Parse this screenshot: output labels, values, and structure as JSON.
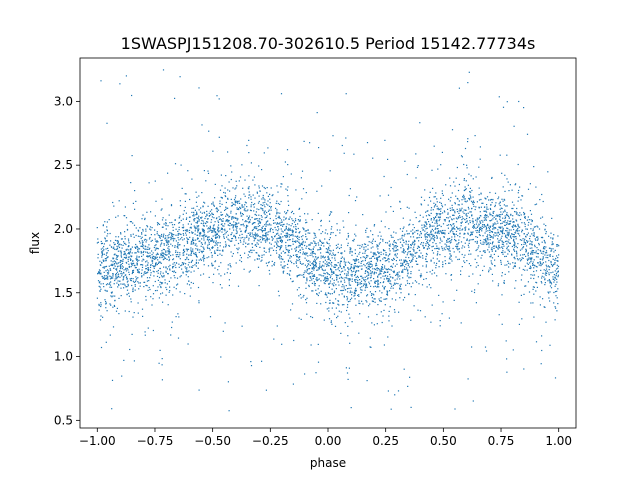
{
  "chart_data": {
    "type": "scatter",
    "title": "1SWASPJ151208.70-302610.5 Period 15142.77734s",
    "xlabel": "phase",
    "ylabel": "flux",
    "xlim": [
      -1.075,
      1.075
    ],
    "ylim": [
      0.44,
      3.34
    ],
    "xticks": [
      -1.0,
      -0.75,
      -0.5,
      -0.25,
      0.0,
      0.25,
      0.5,
      0.75,
      1.0
    ],
    "xtick_labels": [
      "−1.00",
      "−0.75",
      "−0.50",
      "−0.25",
      "0.00",
      "0.25",
      "0.50",
      "0.75",
      "1.00"
    ],
    "yticks": [
      0.5,
      1.0,
      1.5,
      2.0,
      2.5,
      3.0
    ],
    "ytick_labels": [
      "0.5",
      "1.0",
      "1.5",
      "2.0",
      "2.5",
      "3.0"
    ],
    "grid": false,
    "marker_color": "#1f77b4",
    "series": [
      {
        "phase_range": [
          -1.0,
          1.0
        ],
        "trend": {
          "phase": [
            -1.0,
            -0.75,
            -0.5,
            -0.4,
            -0.25,
            0.0,
            0.1,
            0.25,
            0.5,
            0.6,
            0.75,
            1.0
          ],
          "flux": [
            1.68,
            1.78,
            1.98,
            2.05,
            2.0,
            1.7,
            1.63,
            1.7,
            1.98,
            2.05,
            2.0,
            1.72
          ]
        },
        "flux_spread_approx": 0.15,
        "outlier_flux_range": [
          0.55,
          3.25
        ]
      }
    ]
  }
}
